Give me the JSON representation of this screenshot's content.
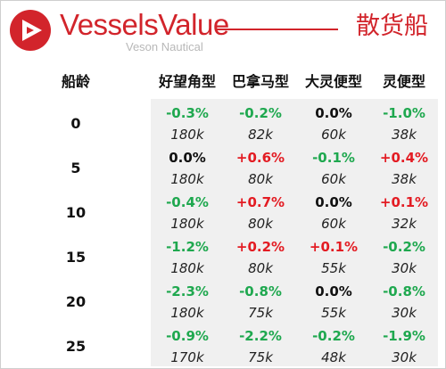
{
  "header": {
    "brand": "VesselsValue",
    "tagline": "Veson Nautical",
    "segment": "散货船",
    "accent_color": "#d2242b"
  },
  "table": {
    "age_header": "船龄",
    "columns": [
      "好望角型",
      "巴拿马型",
      "大灵便型",
      "灵便型"
    ],
    "rows": [
      {
        "age": "0",
        "cells": [
          {
            "change": "-0.3%",
            "value": "180k"
          },
          {
            "change": "-0.2%",
            "value": "82k"
          },
          {
            "change": "0.0%",
            "value": "60k"
          },
          {
            "change": "-1.0%",
            "value": "38k"
          }
        ]
      },
      {
        "age": "5",
        "cells": [
          {
            "change": "0.0%",
            "value": "180k"
          },
          {
            "change": "+0.6%",
            "value": "80k"
          },
          {
            "change": "-0.1%",
            "value": "60k"
          },
          {
            "change": "+0.4%",
            "value": "38k"
          }
        ]
      },
      {
        "age": "10",
        "cells": [
          {
            "change": "-0.4%",
            "value": "180k"
          },
          {
            "change": "+0.7%",
            "value": "80k"
          },
          {
            "change": "0.0%",
            "value": "60k"
          },
          {
            "change": "+0.1%",
            "value": "32k"
          }
        ]
      },
      {
        "age": "15",
        "cells": [
          {
            "change": "-1.2%",
            "value": "180k"
          },
          {
            "change": "+0.2%",
            "value": "80k"
          },
          {
            "change": "+0.1%",
            "value": "55k"
          },
          {
            "change": "-0.2%",
            "value": "30k"
          }
        ]
      },
      {
        "age": "20",
        "cells": [
          {
            "change": "-2.3%",
            "value": "180k"
          },
          {
            "change": "-0.8%",
            "value": "75k"
          },
          {
            "change": "0.0%",
            "value": "55k"
          },
          {
            "change": "-0.8%",
            "value": "30k"
          }
        ]
      },
      {
        "age": "25",
        "cells": [
          {
            "change": "-0.9%",
            "value": "170k"
          },
          {
            "change": "-2.2%",
            "value": "75k"
          },
          {
            "change": "-0.2%",
            "value": "48k"
          },
          {
            "change": "-1.9%",
            "value": "30k"
          }
        ]
      }
    ],
    "colors": {
      "positive": "#e31c23",
      "negative": "#1fa84f",
      "neutral": "#111111"
    }
  }
}
